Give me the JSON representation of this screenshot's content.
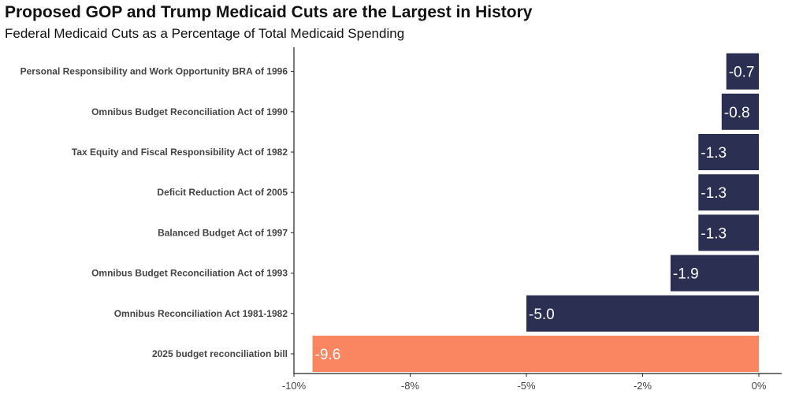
{
  "title": "Proposed GOP and Trump Medicaid Cuts are the Largest in History",
  "subtitle": "Federal Medicaid Cuts as a Percentage of Total Medicaid Spending",
  "chart_data": {
    "type": "bar",
    "orientation": "horizontal",
    "title": "Proposed GOP and Trump Medicaid Cuts are the Largest in History",
    "subtitle": "Federal Medicaid Cuts as a Percentage of Total Medicaid Spending",
    "xlabel": "",
    "ylabel": "",
    "categories": [
      "Personal Responsibility and Work Opportunity BRA of 1996",
      "Omnibus Budget Reconciliation Act of 1990",
      "Tax Equity and Fiscal Responsibility Act of 1982",
      "Deficit Reduction Act of 2005",
      "Balanced Budget Act of 1997",
      "Omnibus Budget Reconciliation Act of 1993",
      "Omnibus Reconciliation Act 1981-1982",
      "2025 budget reconciliation bill"
    ],
    "values": [
      -0.7,
      -0.8,
      -1.3,
      -1.3,
      -1.3,
      -1.9,
      -5.0,
      -9.6
    ],
    "value_labels": [
      "-0.7",
      "-0.8",
      "-1.3",
      "-1.3",
      "-1.3",
      "-1.9",
      "-5.0",
      "-9.6"
    ],
    "bar_colors": [
      "#2b2f52",
      "#2b2f52",
      "#2b2f52",
      "#2b2f52",
      "#2b2f52",
      "#2b2f52",
      "#2b2f52",
      "#fa8561"
    ],
    "x_ticks": [
      {
        "value": -10,
        "label": "-10%"
      },
      {
        "value": -7.5,
        "label": "-8%"
      },
      {
        "value": -5,
        "label": "-5%"
      },
      {
        "value": -2.5,
        "label": "-2%"
      },
      {
        "value": 0,
        "label": "0%"
      }
    ],
    "xlim": [
      -10,
      0
    ],
    "grid": false,
    "legend": "none"
  },
  "colors": {
    "bar_default": "#2b2f52",
    "bar_highlight": "#fa8561",
    "axis": "#222222",
    "text": "#444444"
  }
}
